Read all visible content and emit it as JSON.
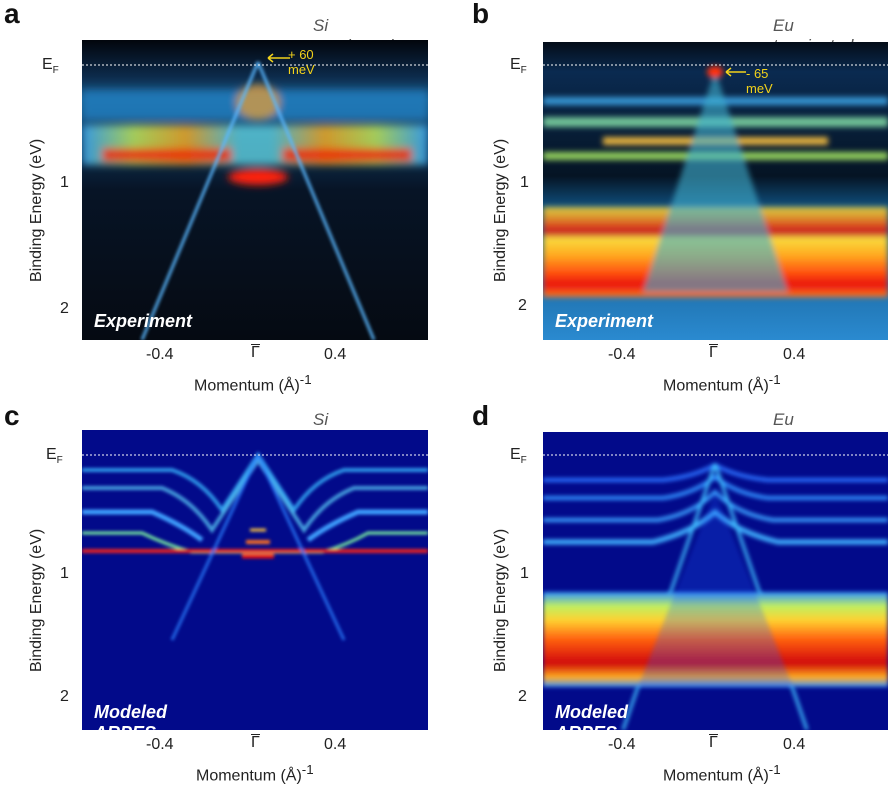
{
  "panels": [
    {
      "letter": "a",
      "termination": "Si terminated",
      "label": "Experiment",
      "annotation": "+ 60 meV",
      "kind": "exp-si"
    },
    {
      "letter": "b",
      "termination": "Eu terminated",
      "label": "Experiment",
      "annotation": "- 65 meV",
      "kind": "exp-eu"
    },
    {
      "letter": "c",
      "termination": "Si terminated",
      "label": "Modeled ARPES",
      "annotation": "",
      "kind": "mod-si"
    },
    {
      "letter": "d",
      "termination": "Eu terminated",
      "label": "Modeled ARPES",
      "annotation": "",
      "kind": "mod-eu"
    }
  ],
  "axes": {
    "ylabel": "Binding Energy  (eV)",
    "xlabel": "Momentum (Å)",
    "xlabel_sup": "-1",
    "ef_label": "E",
    "ef_sub": "F",
    "yticks": [
      "1",
      "2"
    ],
    "xticks": [
      "-0.4",
      "0.4"
    ],
    "gamma": "Γ"
  },
  "chart_data": [
    {
      "type": "heatmap",
      "title": "Si terminated — Experiment",
      "xlabel": "Momentum (Å)^-1",
      "ylabel": "Binding Energy (eV)",
      "xlim": [
        -0.8,
        0.8
      ],
      "ylim": [
        2.25,
        -0.1
      ],
      "yticks": [
        1,
        2
      ],
      "xticks": [
        -0.4,
        0.4
      ],
      "annotations": [
        "+ 60 meV"
      ]
    },
    {
      "type": "heatmap",
      "title": "Eu terminated — Experiment",
      "xlabel": "Momentum (Å)^-1",
      "ylabel": "Binding Energy (eV)",
      "xlim": [
        -0.8,
        0.8
      ],
      "ylim": [
        2.25,
        -0.1
      ],
      "yticks": [
        1,
        2
      ],
      "xticks": [
        -0.4,
        0.4
      ],
      "annotations": [
        "- 65 meV"
      ]
    },
    {
      "type": "heatmap",
      "title": "Si terminated — Modeled ARPES",
      "xlabel": "Momentum (Å)^-1",
      "ylabel": "Binding Energy (eV)",
      "xlim": [
        -0.8,
        0.8
      ],
      "ylim": [
        2.25,
        -0.1
      ],
      "yticks": [
        1,
        2
      ],
      "xticks": [
        -0.4,
        0.4
      ]
    },
    {
      "type": "heatmap",
      "title": "Eu terminated — Modeled ARPES",
      "xlabel": "Momentum (Å)^-1",
      "ylabel": "Binding Energy (eV)",
      "xlim": [
        -0.8,
        0.8
      ],
      "ylim": [
        2.25,
        -0.1
      ],
      "yticks": [
        1,
        2
      ],
      "xticks": [
        -0.4,
        0.4
      ]
    }
  ]
}
